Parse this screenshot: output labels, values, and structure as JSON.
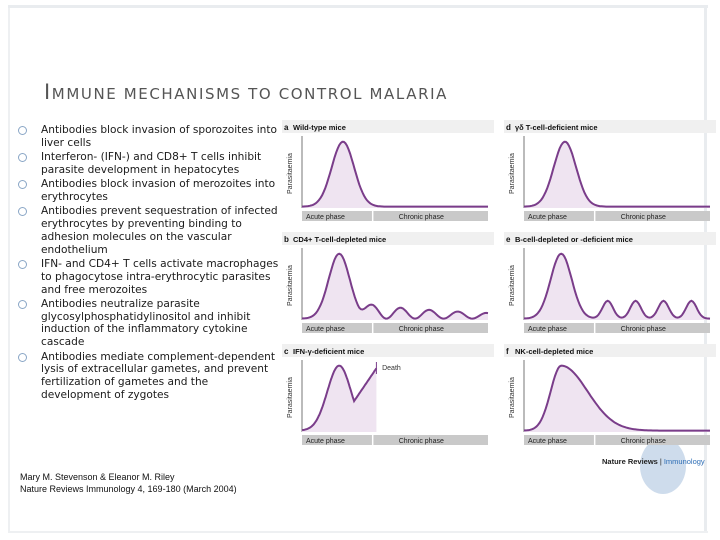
{
  "slide": {
    "title_first": "I",
    "title_rest": "mmune mechanisms to control malaria",
    "bullets": [
      "Antibodies block invasion of sporozoites into liver cells",
      "Interferon- (IFN-) and CD8+ T cells inhibit parasite development in hepatocytes",
      "Antibodies block invasion of merozoites into erythrocytes",
      "Antibodies prevent sequestration of infected erythrocytes by preventing binding to adhesion molecules on the vascular endothelium",
      "IFN- and CD4+ T cells activate macrophages to phagocytose intra-erythrocytic parasites and free merozoites",
      "Antibodies neutralize parasite glycosylphosphatidylinositol and inhibit induction of the inflammatory cytokine cascade",
      "Antibodies mediate complement-dependent lysis of extracellular gametes, and prevent fertilization of gametes and the development of zygotes"
    ],
    "citation_line1": "Mary M. Stevenson & Eleanor M. Riley",
    "citation_line2": "Nature Reviews Immunology 4, 169-180 (March 2004)"
  },
  "figure": {
    "y_label": "Parasitaemia",
    "x_phase_acute": "Acute phase",
    "x_phase_chronic": "Chronic phase",
    "death_label": "Death",
    "source_journal": "Nature Reviews",
    "source_section": "Immunology",
    "panels": [
      {
        "letter": "a",
        "title": "Wild-type mice",
        "pattern": "single-peak"
      },
      {
        "letter": "b",
        "title": "CD4+ T-cell-depleted mice",
        "pattern": "damped-oscillation"
      },
      {
        "letter": "c",
        "title": "IFN-γ-deficient mice",
        "pattern": "peak-then-death"
      },
      {
        "letter": "d",
        "title": "γδ T-cell-deficient mice",
        "pattern": "single-peak"
      },
      {
        "letter": "e",
        "title": "B-cell-depleted or -deficient mice",
        "pattern": "recurrent-peaks"
      },
      {
        "letter": "f",
        "title": "NK-cell-depleted mice",
        "pattern": "broad-peak"
      }
    ],
    "colors": {
      "curve": "#7a3d8a",
      "fill": "#efe4f1",
      "phase_bar": "#c9c9c9",
      "title_bar": "#f0f0f0"
    }
  }
}
